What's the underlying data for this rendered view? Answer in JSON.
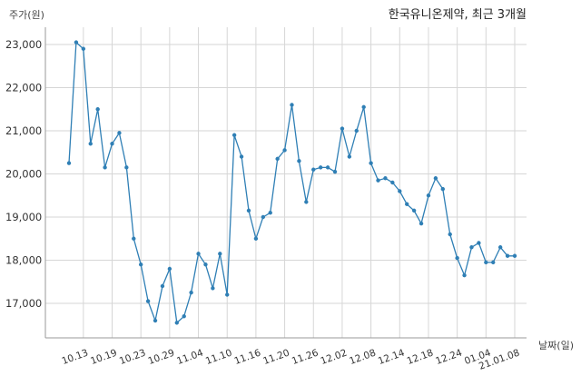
{
  "chart_data": {
    "type": "line",
    "title": "한국유니온제약, 최근 3개월",
    "ylabel": "주가(원)",
    "xlabel": "날짜(일)",
    "ylim": [
      16200,
      23400
    ],
    "yticks": [
      17000,
      18000,
      19000,
      20000,
      21000,
      22000,
      23000
    ],
    "ytick_labels": [
      "17,000",
      "18,000",
      "19,000",
      "20,000",
      "21,000",
      "22,000",
      "23,000"
    ],
    "xtick_labels": [
      "10.13",
      "10.19",
      "10.23",
      "10.29",
      "11.04",
      "11.10",
      "11.16",
      "11.20",
      "11.26",
      "12.02",
      "12.08",
      "12.14",
      "12.18",
      "12.24",
      "01.04",
      "21.01.08"
    ],
    "xtick_positions": [
      2,
      6,
      10,
      14,
      18,
      22,
      26,
      30,
      34,
      38,
      42,
      46,
      50,
      54,
      58,
      62
    ],
    "grid": true,
    "line_color": "#2f7fb5",
    "series": [
      {
        "values": [
          20250,
          23050,
          22900,
          20700,
          21500,
          20150,
          20700,
          20950,
          20150,
          18500,
          17900,
          17050,
          16600,
          17400,
          17800,
          16550,
          16700,
          17250,
          18150,
          17900,
          17350,
          18150,
          17200,
          20900,
          20400,
          19150,
          18500,
          19000,
          19100,
          20350,
          20550,
          21600,
          20300,
          19350,
          20100,
          20150,
          20150,
          20050,
          21050,
          20400,
          21000,
          21550,
          20250,
          19850,
          19900,
          19800,
          19600,
          19300,
          19150,
          18850,
          19500,
          19900,
          19650,
          18600,
          18050,
          17650,
          18300,
          18400,
          17950,
          17950,
          18300,
          18100,
          18100
        ]
      }
    ]
  }
}
